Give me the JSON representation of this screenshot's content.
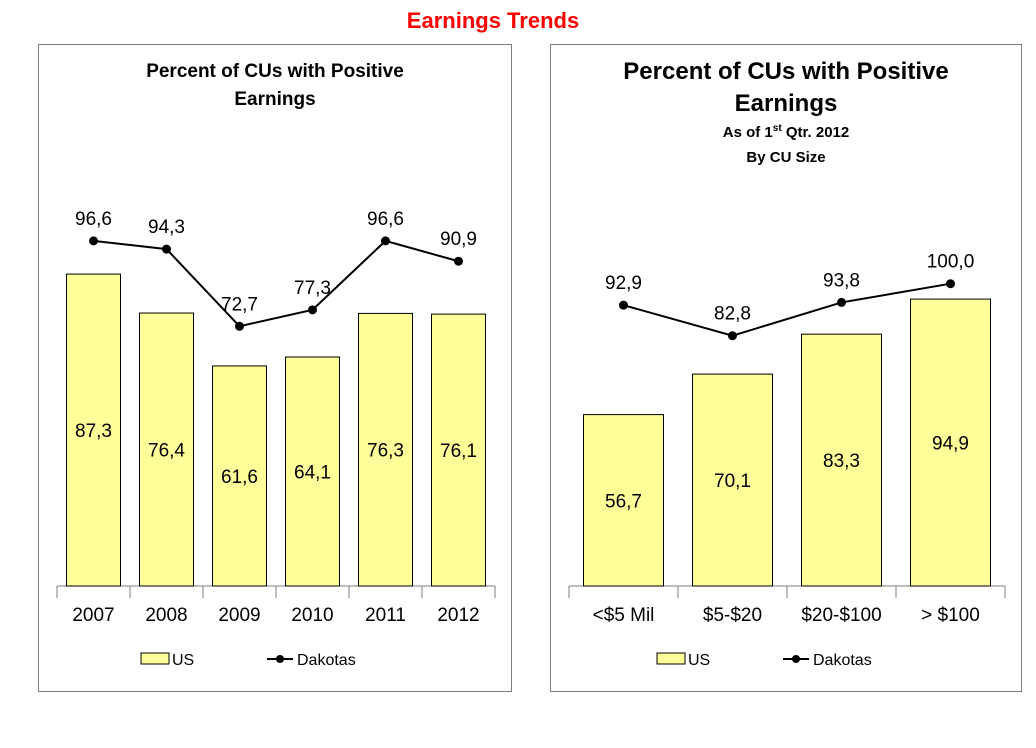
{
  "page_title": "Earnings Trends",
  "colors": {
    "title": "#ff0000",
    "bar_fill": "#ffff99",
    "bar_stroke": "#000000",
    "line": "#000000"
  },
  "chart_data": [
    {
      "type": "bar",
      "title_lines": [
        "Percent of CUs with Positive",
        "Earnings"
      ],
      "subtitle_lines": [],
      "categories": [
        "2007",
        "2008",
        "2009",
        "2010",
        "2011",
        "2012"
      ],
      "series": [
        {
          "name": "US",
          "type": "bar",
          "values": [
            87.3,
            76.4,
            61.6,
            64.1,
            76.3,
            76.1
          ],
          "labels": [
            "87,3",
            "76,4",
            "61,6",
            "64,1",
            "76,3",
            "76,1"
          ]
        },
        {
          "name": "Dakotas",
          "type": "line",
          "values": [
            96.6,
            94.3,
            72.7,
            77.3,
            96.6,
            90.9
          ],
          "labels": [
            "96,6",
            "94,3",
            "72,7",
            "77,3",
            "96,6",
            "90,9"
          ]
        }
      ],
      "ylim": [
        0,
        110
      ],
      "grid": false,
      "legend_position": "bottom"
    },
    {
      "type": "bar",
      "title_lines": [
        "Percent of CUs with Positive",
        "Earnings"
      ],
      "subtitle_lines": [
        {
          "base": "As of 1",
          "sup": "st",
          "rest": " Qtr. 2012"
        },
        {
          "base": "By CU Size",
          "sup": "",
          "rest": ""
        }
      ],
      "categories": [
        "<$5 Mil",
        "$5-$20",
        "$20-$100",
        "> $100"
      ],
      "series": [
        {
          "name": "US",
          "type": "bar",
          "values": [
            56.7,
            70.1,
            83.3,
            94.9
          ],
          "labels": [
            "56,7",
            "70,1",
            "83,3",
            "94,9"
          ]
        },
        {
          "name": "Dakotas",
          "type": "line",
          "values": [
            92.9,
            82.8,
            93.8,
            100.0
          ],
          "labels": [
            "92,9",
            "82,8",
            "93,8",
            "100,0"
          ]
        }
      ],
      "ylim": [
        0,
        130
      ],
      "grid": false,
      "legend_position": "bottom"
    }
  ]
}
